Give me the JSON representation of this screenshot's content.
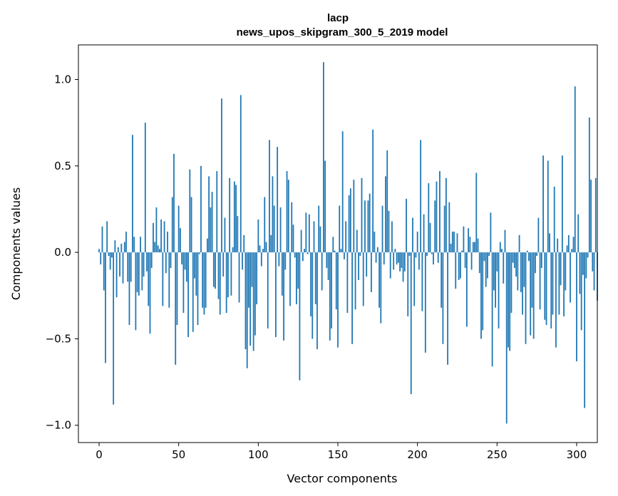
{
  "chart_data": {
    "type": "bar",
    "title": "lacp",
    "subtitle": "news_upos_skipgram_300_5_2019 model",
    "xlabel": "Vector components",
    "ylabel": "Components values",
    "xlim": [
      -13,
      313
    ],
    "ylim": [
      -1.1,
      1.2
    ],
    "xticks": [
      0,
      50,
      100,
      150,
      200,
      250,
      300
    ],
    "xtick_labels": [
      "0",
      "50",
      "100",
      "150",
      "200",
      "250",
      "300"
    ],
    "yticks": [
      -1.0,
      -0.5,
      0.0,
      0.5,
      1.0
    ],
    "ytick_labels": [
      "−1.0",
      "−0.5",
      "0.0",
      "0.5",
      "1.0"
    ],
    "grid": false,
    "bar_color": "#1f77b4",
    "values": [
      0.02,
      -0.07,
      0.15,
      -0.22,
      -0.64,
      0.18,
      -0.02,
      -0.1,
      -0.03,
      -0.88,
      0.07,
      -0.26,
      0.03,
      -0.14,
      0.05,
      -0.18,
      0.06,
      0.12,
      -0.17,
      -0.42,
      -0.17,
      0.68,
      0.09,
      -0.45,
      -0.23,
      -0.25,
      0.09,
      -0.22,
      -0.14,
      0.75,
      -0.11,
      -0.31,
      -0.47,
      -0.09,
      0.17,
      0.06,
      0.26,
      0.04,
      0.02,
      0.19,
      -0.31,
      0.18,
      -0.12,
      0.12,
      -0.32,
      -0.09,
      0.32,
      0.57,
      -0.65,
      -0.42,
      0.27,
      0.14,
      -0.07,
      -0.35,
      -0.1,
      -0.17,
      -0.49,
      0.48,
      0.32,
      -0.46,
      -0.15,
      -0.25,
      -0.42,
      -0.01,
      0.5,
      -0.32,
      -0.36,
      -0.32,
      0.08,
      0.44,
      0.26,
      0.35,
      -0.2,
      -0.21,
      0.47,
      -0.27,
      -0.36,
      0.89,
      -0.14,
      0.2,
      -0.35,
      -0.26,
      0.43,
      -0.25,
      0.03,
      0.41,
      0.39,
      0.21,
      -0.29,
      0.91,
      -0.1,
      0.1,
      -0.56,
      -0.67,
      -0.32,
      -0.54,
      -0.2,
      -0.57,
      -0.48,
      -0.3,
      0.19,
      0.04,
      -0.08,
      0.02,
      0.32,
      0.06,
      -0.44,
      0.65,
      0.1,
      0.44,
      0.27,
      -0.49,
      0.61,
      -0.08,
      0.26,
      -0.25,
      -0.51,
      -0.1,
      0.47,
      0.42,
      -0.31,
      0.29,
      0.16,
      -0.03,
      -0.3,
      -0.21,
      -0.74,
      0.13,
      -0.05,
      0.02,
      0.23,
      -0.01,
      0.22,
      -0.37,
      -0.5,
      0.18,
      -0.3,
      -0.56,
      0.27,
      0.15,
      -0.22,
      1.1,
      0.53,
      -0.09,
      -0.16,
      -0.51,
      -0.44,
      0.09,
      0.01,
      -0.33,
      -0.55,
      0.27,
      0.02,
      0.7,
      -0.04,
      0.18,
      -0.35,
      0.33,
      0.37,
      -0.53,
      0.42,
      -0.33,
      0.13,
      -0.16,
      -0.02,
      0.43,
      -0.31,
      0.3,
      -0.14,
      0.3,
      0.34,
      -0.23,
      0.71,
      0.12,
      -0.06,
      0.03,
      -0.32,
      -0.41,
      0.27,
      -0.07,
      0.44,
      0.59,
      0.24,
      -0.15,
      0.18,
      -0.1,
      0.02,
      -0.07,
      -0.06,
      -0.11,
      -0.09,
      -0.17,
      -0.11,
      0.31,
      -0.37,
      -0.02,
      -0.82,
      0.2,
      -0.31,
      -0.03,
      0.12,
      -0.1,
      0.65,
      -0.34,
      0.22,
      -0.58,
      -0.02,
      0.4,
      0.17,
      -0.01,
      -0.07,
      0.3,
      0.41,
      -0.06,
      0.47,
      -0.32,
      -0.53,
      0.27,
      0.43,
      -0.65,
      0.29,
      0.05,
      0.12,
      0.12,
      -0.21,
      0.11,
      -0.16,
      -0.15,
      0.01,
      0.15,
      -0.09,
      -0.43,
      0.14,
      0.09,
      -0.1,
      0.06,
      0.06,
      0.46,
      0.08,
      -0.12,
      -0.5,
      -0.45,
      -0.05,
      -0.2,
      -0.15,
      -0.02,
      0.23,
      -0.66,
      -0.22,
      -0.32,
      -0.11,
      -0.44,
      0.06,
      0.02,
      -0.18,
      0.13,
      -0.99,
      -0.55,
      -0.57,
      -0.35,
      -0.06,
      -0.09,
      -0.14,
      -0.22,
      0.1,
      -0.23,
      -0.36,
      -0.2,
      -0.53,
      0.01,
      -0.05,
      -0.48,
      -0.32,
      -0.5,
      -0.12,
      -0.02,
      0.2,
      -0.33,
      -0.09,
      0.56,
      -0.39,
      -0.42,
      0.53,
      0.11,
      -0.44,
      -0.36,
      0.38,
      -0.55,
      0.08,
      -0.36,
      -0.19,
      0.56,
      -0.37,
      -0.22,
      0.04,
      0.1,
      -0.29,
      0.02,
      0.09,
      0.96,
      -0.63,
      0.22,
      -0.24,
      -0.45,
      -0.13,
      -0.9,
      -0.15,
      -0.03,
      0.78,
      0.42,
      -0.11,
      -0.22,
      0.43,
      -0.28
    ]
  }
}
